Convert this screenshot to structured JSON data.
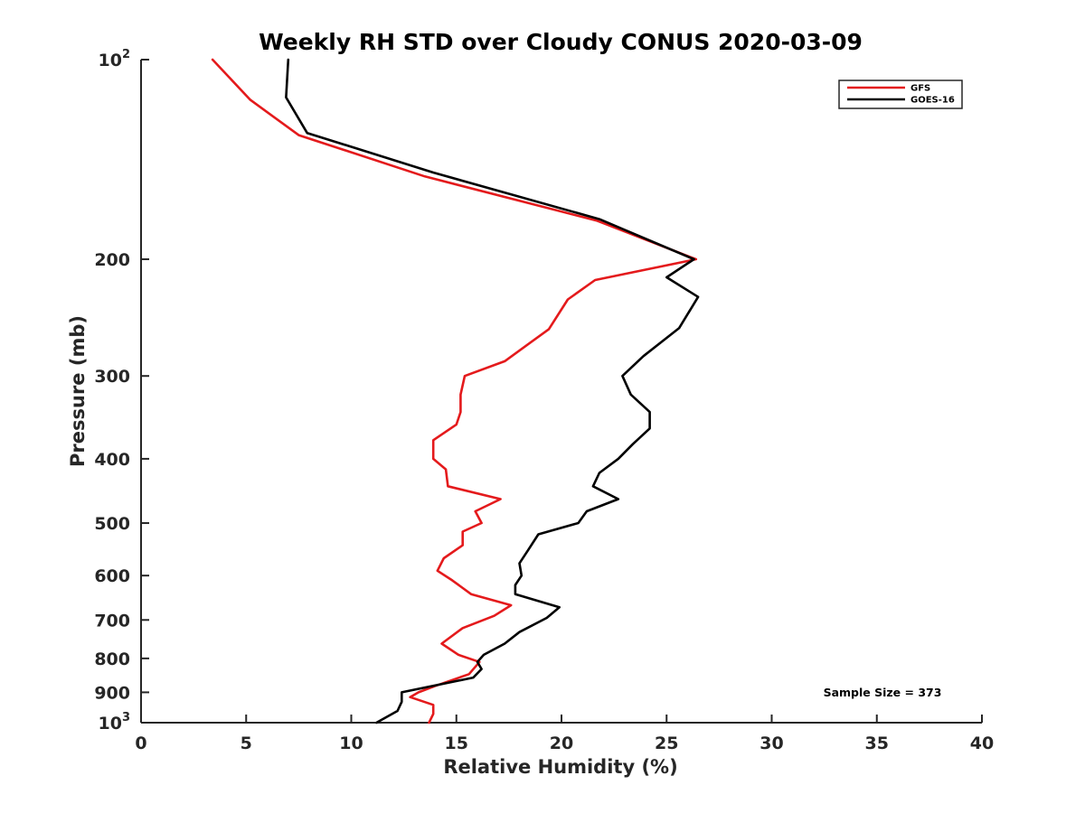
{
  "chart_data": {
    "type": "line",
    "title": "Weekly RH STD over Cloudy CONUS 2020-03-09",
    "xlabel": "Relative Humidity (%)",
    "ylabel": "Pressure (mb)",
    "xlim": [
      0,
      40
    ],
    "ylim": [
      100,
      1000
    ],
    "y_scale": "log",
    "y_reversed": true,
    "grid": false,
    "legend_position": "top-right",
    "x_ticks": [
      "0",
      "5",
      "10",
      "15",
      "20",
      "25",
      "30",
      "35",
      "40"
    ],
    "x_tick_values": [
      0,
      5,
      10,
      15,
      20,
      25,
      30,
      35,
      40
    ],
    "y_ticks": [
      {
        "value": 100,
        "base": "10",
        "exp": "2"
      },
      {
        "value": 200,
        "label": "200"
      },
      {
        "value": 300,
        "label": "300"
      },
      {
        "value": 400,
        "label": "400"
      },
      {
        "value": 500,
        "label": "500"
      },
      {
        "value": 600,
        "label": "600"
      },
      {
        "value": 700,
        "label": "700"
      },
      {
        "value": 800,
        "label": "800"
      },
      {
        "value": 900,
        "label": "900"
      },
      {
        "value": 1000,
        "base": "10",
        "exp": "3"
      }
    ],
    "series": [
      {
        "name": "GFS",
        "color": "#e41a1c",
        "x": [
          3.4,
          5.2,
          7.5,
          13.5,
          21.7,
          26.4,
          21.6,
          20.3,
          19.4,
          17.3,
          15.4,
          15.2,
          15.2,
          15.0,
          13.9,
          13.9,
          14.5,
          14.6,
          17.1,
          15.9,
          16.2,
          15.3,
          15.3,
          14.4,
          14.1,
          14.8,
          15.7,
          17.6,
          16.8,
          15.3,
          14.3,
          15.1,
          16.1,
          15.6,
          14.0,
          13.2,
          12.8,
          13.9,
          13.9,
          13.7
        ],
        "y": [
          100,
          115,
          130,
          150,
          175,
          200,
          215,
          230,
          255,
          285,
          300,
          320,
          340,
          355,
          375,
          400,
          415,
          440,
          460,
          480,
          500,
          515,
          540,
          565,
          590,
          610,
          640,
          665,
          690,
          720,
          760,
          790,
          810,
          845,
          880,
          900,
          915,
          940,
          970,
          1000
        ]
      },
      {
        "name": "GOES-16",
        "color": "#000000",
        "x": [
          7.0,
          6.9,
          7.9,
          13.9,
          21.8,
          26.3,
          25.0,
          26.5,
          25.6,
          23.9,
          22.9,
          23.3,
          24.2,
          24.2,
          23.4,
          22.7,
          21.8,
          21.5,
          22.7,
          21.2,
          20.8,
          18.9,
          18.4,
          18.0,
          18.1,
          17.8,
          17.8,
          19.9,
          19.3,
          18.0,
          17.3,
          16.3,
          16.0,
          16.2,
          15.8,
          12.4,
          12.4,
          12.2,
          11.2
        ],
        "y": [
          100,
          114,
          129,
          148,
          174,
          200,
          213,
          228,
          254,
          280,
          300,
          320,
          340,
          360,
          380,
          400,
          420,
          440,
          460,
          480,
          500,
          520,
          550,
          575,
          600,
          620,
          640,
          670,
          695,
          730,
          760,
          790,
          810,
          830,
          855,
          900,
          930,
          960,
          1000
        ]
      }
    ],
    "annotations": [
      "Sample Size = 373"
    ]
  }
}
